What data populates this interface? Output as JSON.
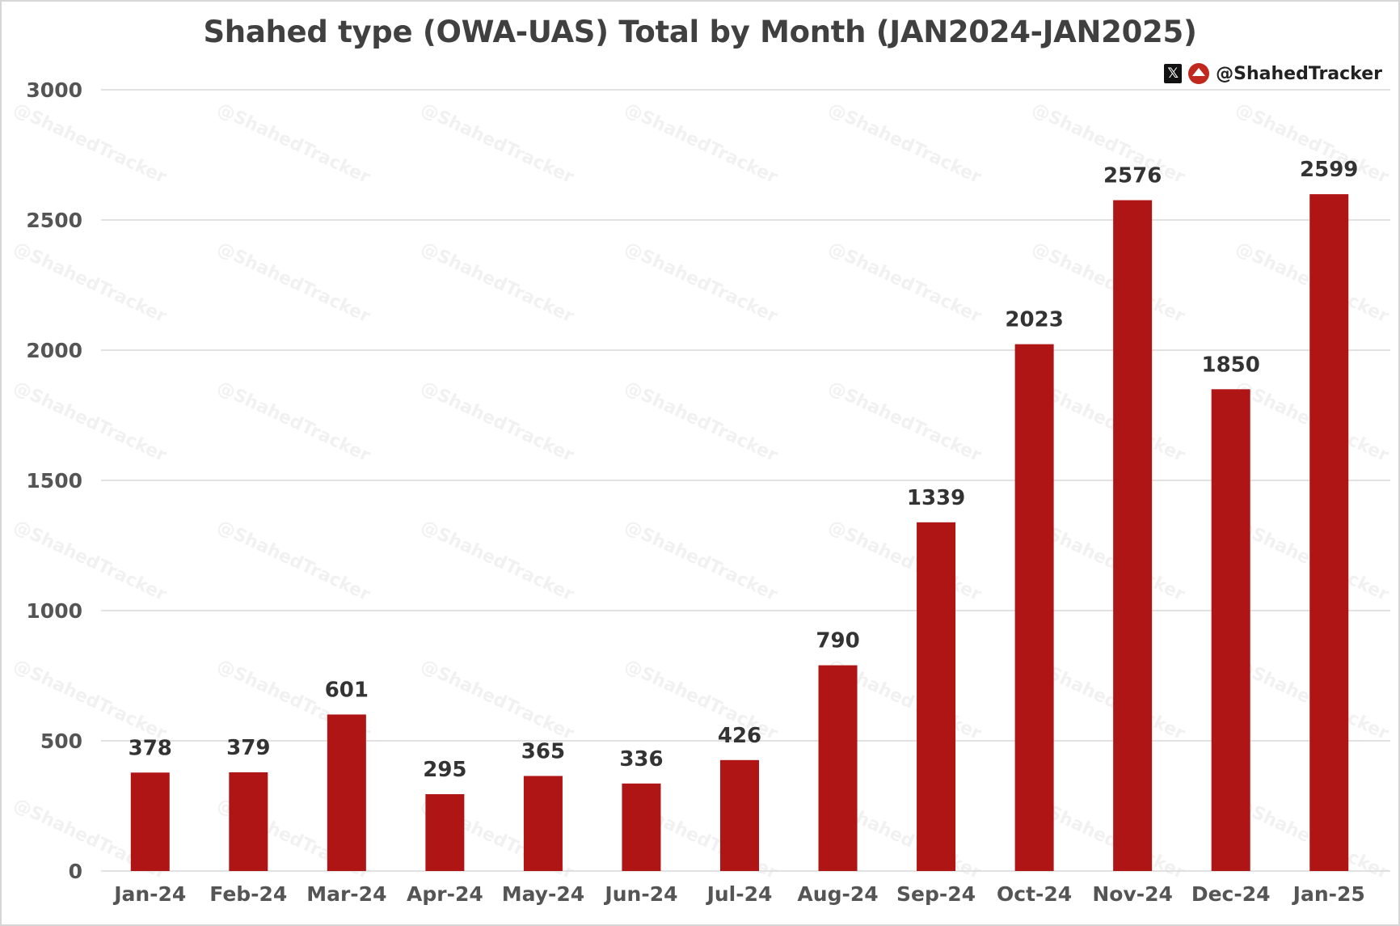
{
  "chart_data": {
    "type": "bar",
    "title": "Shahed type (OWA-UAS) Total by Month (JAN2024-JAN2025)",
    "categories": [
      "Jan-24",
      "Feb-24",
      "Mar-24",
      "Apr-24",
      "May-24",
      "Jun-24",
      "Jul-24",
      "Aug-24",
      "Sep-24",
      "Oct-24",
      "Nov-24",
      "Dec-24",
      "Jan-25"
    ],
    "values": [
      378,
      379,
      601,
      295,
      365,
      336,
      426,
      790,
      1339,
      2023,
      2576,
      1850,
      2599
    ],
    "xlabel": "",
    "ylabel": "",
    "ylim": [
      0,
      3000
    ],
    "yticks": [
      0,
      500,
      1000,
      1500,
      2000,
      2500,
      3000
    ],
    "grid": true,
    "data_labels": true,
    "bar_color": "#B01515"
  },
  "branding": {
    "handle": "@ShahedTracker",
    "x_icon": "x-logo-icon",
    "tracker_icon": "shahedtracker-logo-icon",
    "watermark": "@ShahedTracker"
  }
}
